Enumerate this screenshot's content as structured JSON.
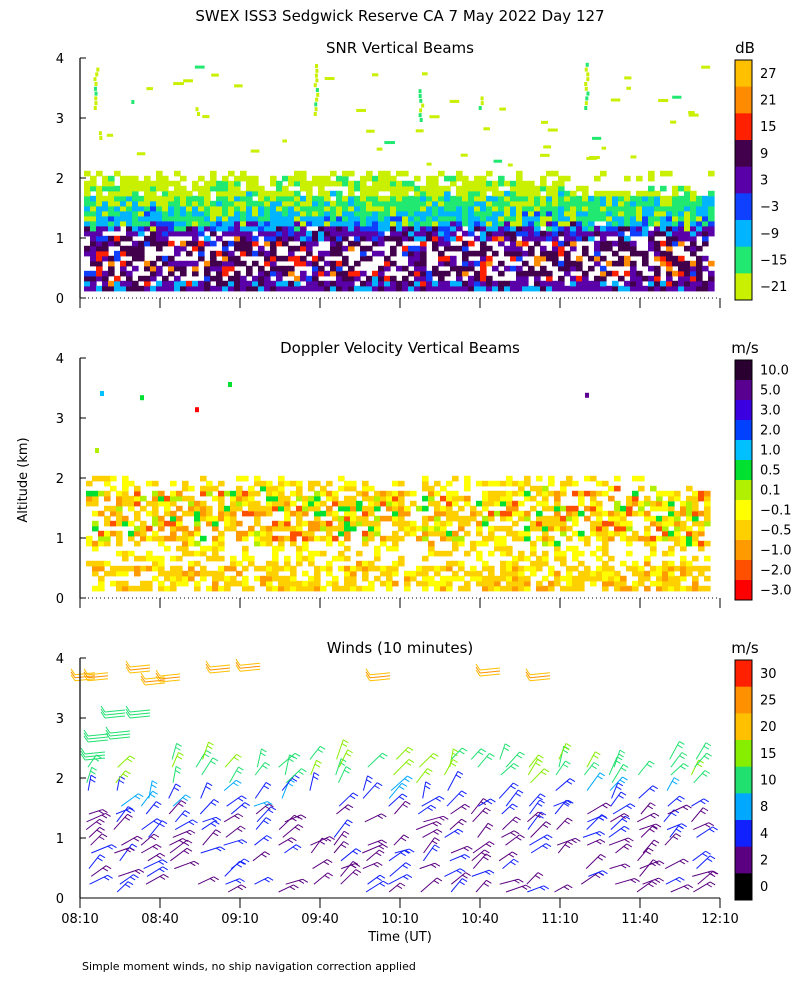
{
  "figure": {
    "title": "SWEX ISS3 Sedgwick Reserve CA   7 May 2022 Day 127",
    "y_label": "Altitude (km)",
    "x_label": "Time (UT)",
    "footnote": "Simple moment winds, no ship navigation correction applied"
  },
  "chart_data": [
    {
      "type": "heatmap",
      "title": "SNR Vertical Beams",
      "units": "dB",
      "ylim": [
        0,
        4
      ],
      "y_ticks": [
        "0",
        "1",
        "2",
        "3",
        "4"
      ],
      "xlim_minutes": [
        0,
        240
      ],
      "colorbar": {
        "levels": [
          "27",
          "21",
          "15",
          "9",
          "3",
          "−3",
          "−9",
          "−15",
          "−21"
        ],
        "colors": [
          "#ffc000",
          "#ff8c00",
          "#ff2000",
          "#42004c",
          "#5a00a8",
          "#1040ff",
          "#00b4ff",
          "#20e870",
          "#c8f000"
        ]
      }
    },
    {
      "type": "heatmap",
      "title": "Doppler Velocity Vertical Beams",
      "units": "m/s",
      "ylim": [
        0,
        4
      ],
      "y_ticks": [
        "0",
        "1",
        "2",
        "3",
        "4"
      ],
      "xlim_minutes": [
        0,
        240
      ],
      "colorbar": {
        "levels": [
          "10.0",
          "5.0",
          "3.0",
          "2.0",
          "1.0",
          "0.5",
          "0.1",
          "−0.1",
          "−0.5",
          "−1.0",
          "−2.0",
          "−3.0"
        ],
        "colors": [
          "#2a0030",
          "#5a0090",
          "#3a00e0",
          "#0040ff",
          "#00c0ff",
          "#00e030",
          "#b0f000",
          "#ffff00",
          "#ffd000",
          "#ff9a00",
          "#ff5000",
          "#ff0000"
        ]
      }
    },
    {
      "type": "scatter",
      "title": "Winds (10 minutes)",
      "units": "m/s",
      "ylim": [
        0,
        4
      ],
      "y_ticks": [
        "0",
        "1",
        "2",
        "3",
        "4"
      ],
      "xlim_minutes": [
        0,
        240
      ],
      "x_ticks": [
        "08:10",
        "08:40",
        "09:10",
        "09:40",
        "10:10",
        "10:40",
        "11:10",
        "11:40",
        "12:10"
      ],
      "colorbar": {
        "levels": [
          "30",
          "25",
          "20",
          "15",
          "10",
          "8",
          "4",
          "2",
          "0"
        ],
        "colors": [
          "#ff2000",
          "#ff9000",
          "#ffc000",
          "#88ee00",
          "#20e070",
          "#00a8ff",
          "#1020ff",
          "#5a0080",
          "#000000"
        ]
      }
    }
  ]
}
